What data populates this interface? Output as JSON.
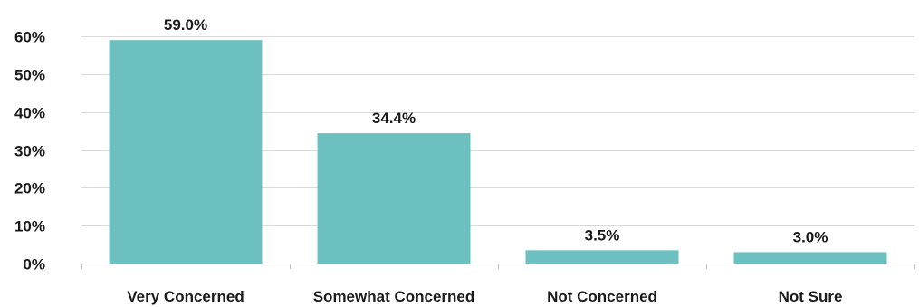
{
  "chart_data": {
    "type": "bar",
    "categories": [
      "Very Concerned",
      "Somewhat Concerned",
      "Not Concerned",
      "Not Sure"
    ],
    "values": [
      59.0,
      34.4,
      3.5,
      3.0
    ],
    "data_labels": [
      "59.0%",
      "34.4%",
      "3.5%",
      "3.0%"
    ],
    "title": "",
    "xlabel": "",
    "ylabel": "",
    "ylim": [
      0,
      60
    ],
    "yticks": [
      0,
      10,
      20,
      30,
      40,
      50,
      60
    ],
    "ytick_labels": [
      "0%",
      "10%",
      "20%",
      "30%",
      "40%",
      "50%",
      "60%"
    ],
    "grid": true,
    "legend": "none",
    "colors": {
      "bar": "#6cc0bf",
      "grid": "#d9d9d9",
      "axis": "#bfbfbf",
      "text": "#1a1a1a"
    }
  }
}
